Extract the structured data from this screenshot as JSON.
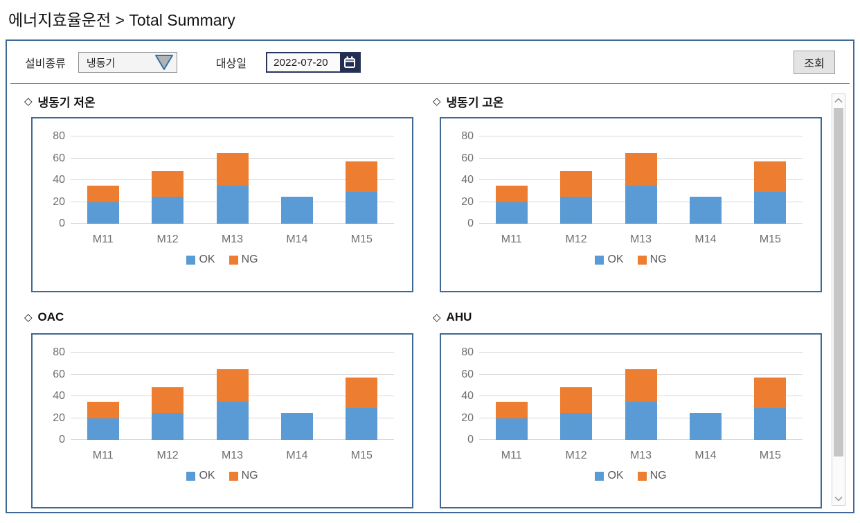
{
  "page_title": "에너지효율운전 > Total Summary",
  "icons": {
    "diamond": "◇",
    "dropdown_arrow": "triangle-down",
    "calendar": "calendar",
    "scroll_up": "chevron-up",
    "scroll_down": "chevron-down"
  },
  "toolbar": {
    "equipment_label": "설비종류",
    "equipment_value": "냉동기",
    "date_label": "대상일",
    "date_value": "2022-07-20",
    "search_button": "조회"
  },
  "colors": {
    "ok": "#5B9BD5",
    "ng": "#ED7D31",
    "panel_border": "#3E6996",
    "gridline": "#D9D9D9",
    "tick_text": "#6E6E6E",
    "legend_text": "#595959"
  },
  "chart_data": [
    {
      "type": "bar",
      "stacked": true,
      "title": "냉동기 저온",
      "categories": [
        "M11",
        "M12",
        "M13",
        "M14",
        "M15"
      ],
      "series": [
        {
          "name": "OK",
          "color": "#5B9BD5",
          "values": [
            20,
            25,
            35,
            25,
            29
          ]
        },
        {
          "name": "NG",
          "color": "#ED7D31",
          "values": [
            15,
            23,
            30,
            0,
            28
          ]
        }
      ],
      "ylim": [
        0,
        80
      ],
      "yticks": [
        0,
        20,
        40,
        60,
        80
      ],
      "grid": true,
      "legend_position": "bottom"
    },
    {
      "type": "bar",
      "stacked": true,
      "title": "냉동기 고온",
      "categories": [
        "M11",
        "M12",
        "M13",
        "M14",
        "M15"
      ],
      "series": [
        {
          "name": "OK",
          "color": "#5B9BD5",
          "values": [
            20,
            25,
            35,
            25,
            29
          ]
        },
        {
          "name": "NG",
          "color": "#ED7D31",
          "values": [
            15,
            23,
            30,
            0,
            28
          ]
        }
      ],
      "ylim": [
        0,
        80
      ],
      "yticks": [
        0,
        20,
        40,
        60,
        80
      ],
      "grid": true,
      "legend_position": "bottom"
    },
    {
      "type": "bar",
      "stacked": true,
      "title": "OAC",
      "categories": [
        "M11",
        "M12",
        "M13",
        "M14",
        "M15"
      ],
      "series": [
        {
          "name": "OK",
          "color": "#5B9BD5",
          "values": [
            20,
            25,
            35,
            25,
            29
          ]
        },
        {
          "name": "NG",
          "color": "#ED7D31",
          "values": [
            15,
            23,
            30,
            0,
            28
          ]
        }
      ],
      "ylim": [
        0,
        80
      ],
      "yticks": [
        0,
        20,
        40,
        60,
        80
      ],
      "grid": true,
      "legend_position": "bottom"
    },
    {
      "type": "bar",
      "stacked": true,
      "title": "AHU",
      "categories": [
        "M11",
        "M12",
        "M13",
        "M14",
        "M15"
      ],
      "series": [
        {
          "name": "OK",
          "color": "#5B9BD5",
          "values": [
            20,
            25,
            35,
            25,
            29
          ]
        },
        {
          "name": "NG",
          "color": "#ED7D31",
          "values": [
            15,
            23,
            30,
            0,
            28
          ]
        }
      ],
      "ylim": [
        0,
        80
      ],
      "yticks": [
        0,
        20,
        40,
        60,
        80
      ],
      "grid": true,
      "legend_position": "bottom"
    }
  ]
}
